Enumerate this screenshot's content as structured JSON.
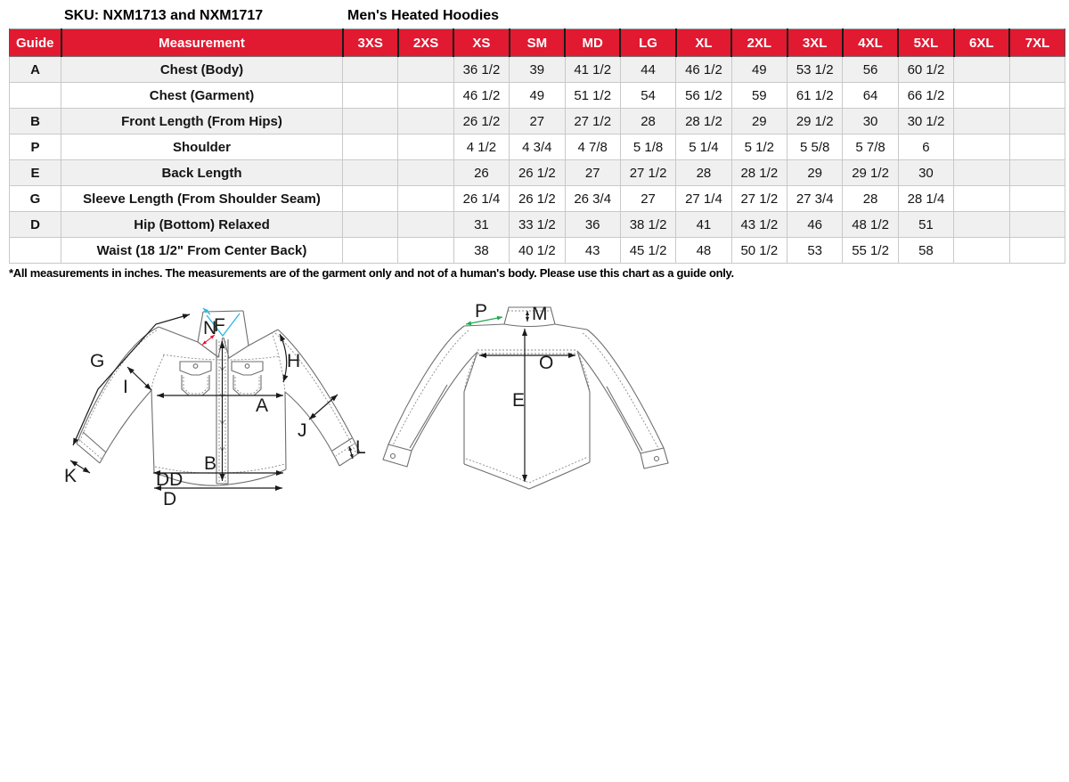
{
  "header": {
    "sku": "SKU: NXM1713 and NXM1717",
    "product": "Men's Heated Hoodies"
  },
  "chart_data": {
    "type": "table",
    "title": "Men's Heated Hoodies size chart",
    "columns": [
      "Guide",
      "Measurement",
      "3XS",
      "2XS",
      "XS",
      "SM",
      "MD",
      "LG",
      "XL",
      "2XL",
      "3XL",
      "4XL",
      "5XL",
      "6XL",
      "7XL"
    ],
    "rows": [
      {
        "guide": "A",
        "measurement": "Chest (Body)",
        "values": [
          "",
          "",
          "36 1/2",
          "39",
          "41 1/2",
          "44",
          "46 1/2",
          "49",
          "53 1/2",
          "56",
          "60 1/2",
          "",
          ""
        ]
      },
      {
        "guide": "",
        "measurement": "Chest (Garment)",
        "values": [
          "",
          "",
          "46 1/2",
          "49",
          "51 1/2",
          "54",
          "56 1/2",
          "59",
          "61 1/2",
          "64",
          "66 1/2",
          "",
          ""
        ]
      },
      {
        "guide": "B",
        "measurement": "Front Length (From Hips)",
        "values": [
          "",
          "",
          "26 1/2",
          "27",
          "27 1/2",
          "28",
          "28 1/2",
          "29",
          "29 1/2",
          "30",
          "30 1/2",
          "",
          ""
        ]
      },
      {
        "guide": "P",
        "measurement": "Shoulder",
        "values": [
          "",
          "",
          "4 1/2",
          "4 3/4",
          "4 7/8",
          "5 1/8",
          "5 1/4",
          "5 1/2",
          "5 5/8",
          "5 7/8",
          "6",
          "",
          ""
        ]
      },
      {
        "guide": "E",
        "measurement": "Back Length",
        "values": [
          "",
          "",
          "26",
          "26 1/2",
          "27",
          "27 1/2",
          "28",
          "28 1/2",
          "29",
          "29 1/2",
          "30",
          "",
          ""
        ]
      },
      {
        "guide": "G",
        "measurement": "Sleeve Length (From Shoulder Seam)",
        "values": [
          "",
          "",
          "26 1/4",
          "26 1/2",
          "26 3/4",
          "27",
          "27 1/4",
          "27 1/2",
          "27 3/4",
          "28",
          "28 1/4",
          "",
          ""
        ]
      },
      {
        "guide": "D",
        "measurement": "Hip (Bottom) Relaxed",
        "values": [
          "",
          "",
          "31",
          "33 1/2",
          "36",
          "38 1/2",
          "41",
          "43 1/2",
          "46",
          "48 1/2",
          "51",
          "",
          ""
        ]
      },
      {
        "guide": "",
        "measurement": "Waist (18 1/2\" From Center Back)",
        "values": [
          "",
          "",
          "38",
          "40 1/2",
          "43",
          "45 1/2",
          "48",
          "50 1/2",
          "53",
          "55 1/2",
          "58",
          "",
          ""
        ]
      }
    ],
    "footnote": "*All measurements in inches. The measurements are of the garment only and not of a human's body. Please use this chart as a guide only."
  },
  "diagram": {
    "front": {
      "labels": {
        "G": "G",
        "I": "I",
        "F": "F",
        "N": "N",
        "H": "H",
        "A": "A",
        "J": "J",
        "B": "B",
        "K": "K",
        "DD": "DD",
        "D": "D",
        "L": "L"
      }
    },
    "back": {
      "labels": {
        "P": "P",
        "M": "M",
        "O": "O",
        "E": "E"
      }
    }
  },
  "colors": {
    "header_bg": "#e11931",
    "header_text": "#ffffff",
    "row_alt": "#f0f0f0",
    "label_cyan": "#2bb7e8",
    "label_red": "#e8112d",
    "label_green": "#1fa84f"
  }
}
